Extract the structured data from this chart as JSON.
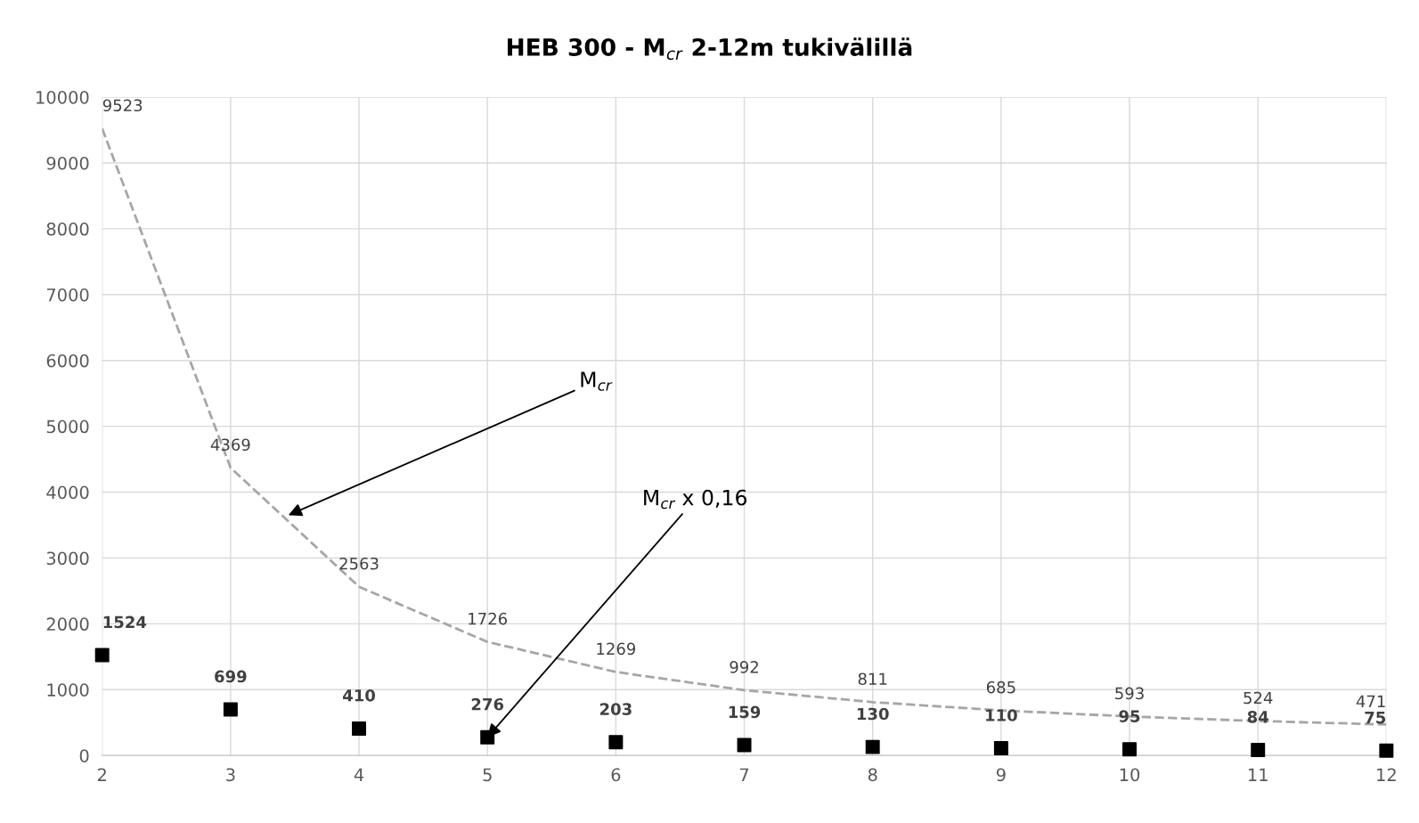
{
  "chart_data": {
    "type": "line",
    "title": "HEB 300 - M$_{cr}$ 2-12m tukivälillä",
    "x": [
      2,
      3,
      4,
      5,
      6,
      7,
      8,
      9,
      10,
      11,
      12
    ],
    "series": [
      {
        "color": "#a6a6a6",
        "line_style": "dashed",
        "marker": "none",
        "values": [
          9523,
          4369,
          2563,
          1726,
          1269,
          992,
          811,
          685,
          593,
          524,
          471
        ]
      },
      {
        "type": "scatter",
        "color": "#000000",
        "marker": "square",
        "values": [
          1524,
          699,
          410,
          276,
          203,
          159,
          130,
          110,
          95,
          84,
          75
        ]
      }
    ],
    "annotations": [
      {
        "text": "M$_{cr}$",
        "x": 3.45,
        "y": 3650
      },
      {
        "text": "M$_{cr}$ x 0,16",
        "x": 5,
        "y": 276
      }
    ],
    "data_labels": true,
    "grid": true,
    "legend": false,
    "xlim": [
      2,
      12
    ],
    "xticks": [
      2,
      3,
      4,
      5,
      6,
      7,
      8,
      9,
      10,
      11,
      12
    ],
    "ylim": [
      0,
      10000
    ],
    "yticks": [
      0,
      1000,
      2000,
      3000,
      4000,
      5000,
      6000,
      7000,
      8000,
      9000,
      10000
    ]
  }
}
